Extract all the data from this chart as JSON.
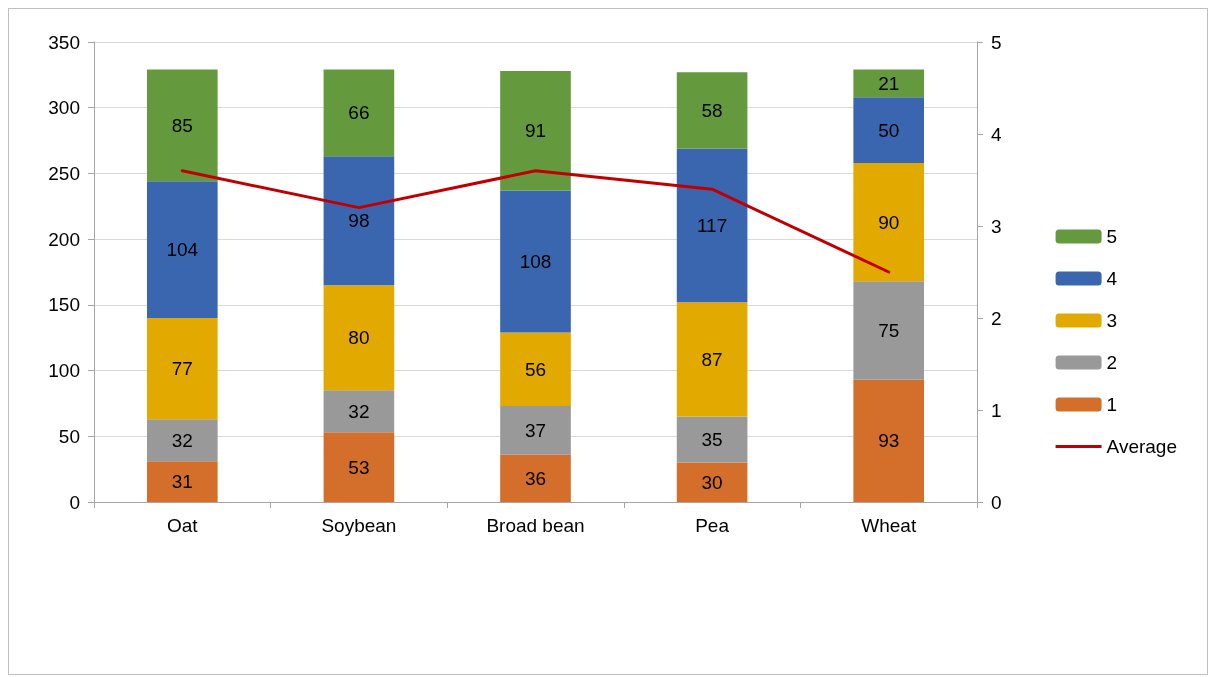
{
  "chart_data": {
    "type": "bar",
    "stacked": true,
    "categories": [
      "Oat",
      "Soybean",
      "Broad bean",
      "Pea",
      "Wheat"
    ],
    "series": [
      {
        "name": "1",
        "color": "#d46f2b",
        "values": [
          31,
          53,
          36,
          30,
          93
        ]
      },
      {
        "name": "2",
        "color": "#999999",
        "values": [
          32,
          32,
          37,
          35,
          75
        ]
      },
      {
        "name": "3",
        "color": "#e2a900",
        "values": [
          77,
          80,
          56,
          87,
          90
        ]
      },
      {
        "name": "4",
        "color": "#3a66b0",
        "values": [
          104,
          98,
          108,
          117,
          50
        ]
      },
      {
        "name": "5",
        "color": "#65993e",
        "values": [
          85,
          66,
          91,
          58,
          21
        ]
      },
      {
        "name": "Average",
        "type": "line",
        "axis": "y2",
        "color": "#c00000",
        "values": [
          3.6,
          3.2,
          3.6,
          3.4,
          2.5
        ],
        "value_labels": [
          null,
          null,
          null,
          null,
          null
        ]
      }
    ],
    "ylim": [
      0,
      350
    ],
    "yticks": [
      0,
      50,
      100,
      150,
      200,
      250,
      300,
      350
    ],
    "y2lim": [
      0,
      5
    ],
    "y2ticks": [
      0,
      1,
      2,
      3,
      4,
      5
    ],
    "data_labels": true,
    "grid": "y",
    "legend": "right",
    "marker": "none",
    "line_style": "solid"
  }
}
